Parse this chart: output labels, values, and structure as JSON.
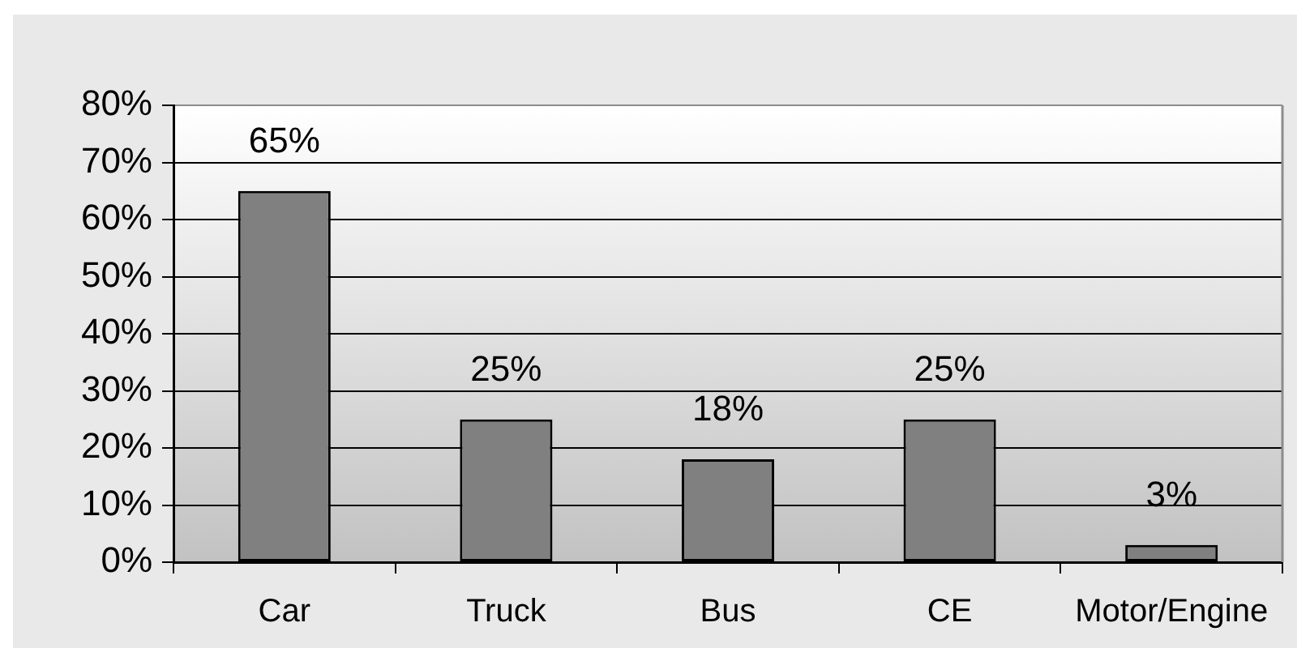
{
  "chart_data": {
    "type": "bar",
    "categories": [
      "Car",
      "Truck",
      "Bus",
      "CE",
      "Motor/Engine"
    ],
    "values": [
      65,
      25,
      18,
      25,
      3
    ],
    "color": "#808080",
    "value_labels": [
      "65%",
      "25%",
      "18%",
      "25%",
      "3%"
    ],
    "ylim": [
      0,
      80
    ],
    "yticks": [
      {
        "value": 0,
        "label": "0%"
      },
      {
        "value": 10,
        "label": "10%"
      },
      {
        "value": 20,
        "label": "20%"
      },
      {
        "value": 30,
        "label": "30%"
      },
      {
        "value": 40,
        "label": "40%"
      },
      {
        "value": 50,
        "label": "50%"
      },
      {
        "value": 60,
        "label": "60%"
      },
      {
        "value": 70,
        "label": "70%"
      },
      {
        "value": 80,
        "label": "80%"
      }
    ],
    "grid": "y",
    "legend": false
  }
}
